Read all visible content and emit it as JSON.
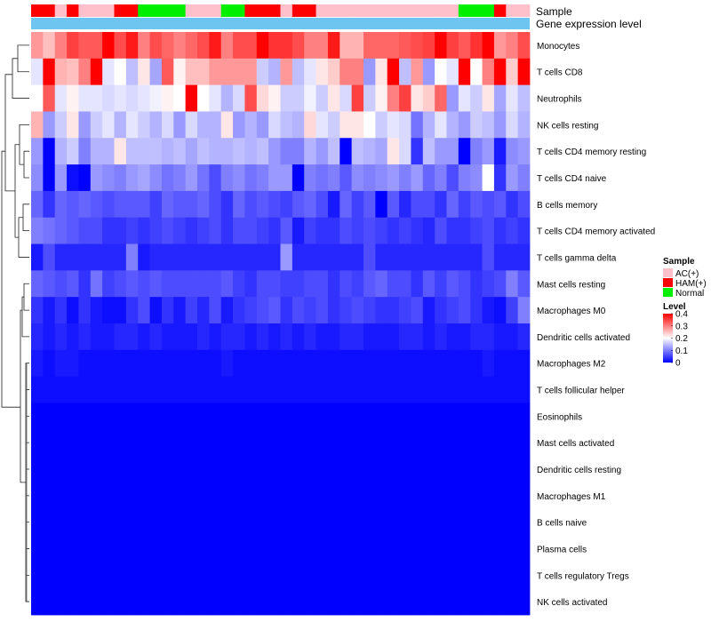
{
  "chart_data": {
    "type": "heatmap",
    "title": "",
    "annotation_labels": {
      "sample": "Sample",
      "gene_level": "Gene expression level"
    },
    "legend": {
      "sample_title": "Sample",
      "sample_entries": [
        {
          "label": "AC(+)",
          "color": "#ffc0cb"
        },
        {
          "label": "HAM(+)",
          "color": "#ff0000"
        },
        {
          "label": "Normal",
          "color": "#00ee00"
        }
      ],
      "level_title": "Level",
      "level_ticks": [
        "0.4",
        "0.3",
        "0.2",
        "0.1",
        "0"
      ],
      "level_tick_values": [
        0.4,
        0.3,
        0.2,
        0.1,
        0
      ],
      "color_scale": {
        "min": 0,
        "max": 0.4,
        "low": "#0000ff",
        "mid": "#ffffff",
        "high": "#ff0000",
        "midpoint": 0.2
      }
    },
    "gene_level_color": "#6ec6f0",
    "sample_groups": [
      "HAM(+)",
      "HAM(+)",
      "AC(+)",
      "HAM(+)",
      "AC(+)",
      "AC(+)",
      "AC(+)",
      "HAM(+)",
      "HAM(+)",
      "Normal",
      "Normal",
      "Normal",
      "Normal",
      "AC(+)",
      "AC(+)",
      "AC(+)",
      "Normal",
      "Normal",
      "HAM(+)",
      "HAM(+)",
      "HAM(+)",
      "AC(+)",
      "HAM(+)",
      "HAM(+)",
      "AC(+)",
      "AC(+)",
      "AC(+)",
      "AC(+)",
      "AC(+)",
      "AC(+)",
      "AC(+)",
      "AC(+)",
      "AC(+)",
      "AC(+)",
      "AC(+)",
      "AC(+)",
      "Normal",
      "Normal",
      "Normal",
      "HAM(+)",
      "AC(+)",
      "AC(+)"
    ],
    "rows": [
      "Monocytes",
      "T cells CD8",
      "Neutrophils",
      "NK cells resting",
      "T cells CD4 memory resting",
      "T cells CD4 naive",
      "B cells memory",
      "T cells CD4 memory activated",
      "T cells gamma delta",
      "Mast cells resting",
      "Macrophages M0",
      "Dendritic cells activated",
      "Macrophages M2",
      "T cells follicular helper",
      "Eosinophils",
      "Mast cells activated",
      "Dendritic cells resting",
      "Macrophages M1",
      "B cells naive",
      "Plasma cells",
      "T cells regulatory  Tregs",
      "NK cells activated"
    ],
    "values": [
      [
        0.28,
        0.25,
        0.3,
        0.35,
        0.33,
        0.33,
        0.4,
        0.34,
        0.38,
        0.3,
        0.34,
        0.32,
        0.3,
        0.32,
        0.34,
        0.38,
        0.3,
        0.34,
        0.34,
        0.4,
        0.36,
        0.36,
        0.34,
        0.3,
        0.3,
        0.38,
        0.26,
        0.26,
        0.32,
        0.32,
        0.32,
        0.33,
        0.34,
        0.35,
        0.4,
        0.35,
        0.33,
        0.36,
        0.4,
        0.28,
        0.3,
        0.34
      ],
      [
        0.18,
        0.4,
        0.26,
        0.25,
        0.3,
        0.4,
        0.18,
        0.2,
        0.15,
        0.22,
        0.13,
        0.33,
        0.21,
        0.25,
        0.25,
        0.28,
        0.28,
        0.28,
        0.28,
        0.16,
        0.14,
        0.28,
        0.15,
        0.18,
        0.22,
        0.24,
        0.3,
        0.3,
        0.12,
        0.22,
        0.4,
        0.15,
        0.28,
        0.12,
        0.2,
        0.18,
        0.4,
        0.2,
        0.3,
        0.4,
        0.24,
        0.4
      ],
      [
        0.2,
        0.33,
        0.18,
        0.21,
        0.18,
        0.18,
        0.17,
        0.18,
        0.17,
        0.18,
        0.19,
        0.21,
        0.2,
        0.4,
        0.2,
        0.18,
        0.14,
        0.17,
        0.34,
        0.23,
        0.21,
        0.16,
        0.16,
        0.19,
        0.16,
        0.22,
        0.17,
        0.35,
        0.16,
        0.21,
        0.3,
        0.35,
        0.22,
        0.24,
        0.32,
        0.12,
        0.18,
        0.16,
        0.22,
        0.13,
        0.18,
        0.15
      ],
      [
        0.26,
        0.12,
        0.16,
        0.22,
        0.12,
        0.16,
        0.18,
        0.14,
        0.18,
        0.16,
        0.14,
        0.17,
        0.12,
        0.17,
        0.14,
        0.14,
        0.22,
        0.12,
        0.14,
        0.12,
        0.17,
        0.15,
        0.14,
        0.23,
        0.18,
        0.16,
        0.22,
        0.22,
        0.2,
        0.16,
        0.18,
        0.17,
        0.09,
        0.14,
        0.18,
        0.14,
        0.12,
        0.16,
        0.15,
        0.12,
        0.17,
        0.14
      ],
      [
        0.12,
        0.0,
        0.14,
        0.16,
        0.1,
        0.14,
        0.14,
        0.22,
        0.15,
        0.15,
        0.15,
        0.14,
        0.15,
        0.13,
        0.15,
        0.14,
        0.14,
        0.15,
        0.14,
        0.15,
        0.12,
        0.1,
        0.1,
        0.14,
        0.12,
        0.15,
        0.0,
        0.15,
        0.14,
        0.13,
        0.22,
        0.17,
        0.04,
        0.15,
        0.12,
        0.12,
        0.0,
        0.1,
        0.12,
        0.02,
        0.11,
        0.12
      ],
      [
        0.11,
        0.0,
        0.12,
        0.01,
        0.0,
        0.12,
        0.11,
        0.1,
        0.12,
        0.13,
        0.11,
        0.09,
        0.1,
        0.12,
        0.09,
        0.06,
        0.1,
        0.11,
        0.09,
        0.1,
        0.12,
        0.12,
        0.0,
        0.1,
        0.09,
        0.1,
        0.07,
        0.11,
        0.1,
        0.11,
        0.12,
        0.1,
        0.12,
        0.08,
        0.1,
        0.06,
        0.1,
        0.11,
        0.2,
        0.04,
        0.12,
        0.1
      ],
      [
        0.08,
        0.04,
        0.08,
        0.07,
        0.08,
        0.07,
        0.06,
        0.07,
        0.07,
        0.07,
        0.05,
        0.08,
        0.07,
        0.07,
        0.08,
        0.06,
        0.04,
        0.08,
        0.06,
        0.07,
        0.06,
        0.05,
        0.07,
        0.08,
        0.06,
        0.02,
        0.08,
        0.05,
        0.07,
        0.0,
        0.07,
        0.03,
        0.06,
        0.06,
        0.04,
        0.08,
        0.05,
        0.07,
        0.06,
        0.07,
        0.04,
        0.06
      ],
      [
        0.1,
        0.09,
        0.08,
        0.07,
        0.06,
        0.06,
        0.04,
        0.04,
        0.05,
        0.04,
        0.05,
        0.06,
        0.05,
        0.04,
        0.05,
        0.06,
        0.04,
        0.06,
        0.06,
        0.05,
        0.04,
        0.07,
        0.02,
        0.05,
        0.04,
        0.04,
        0.06,
        0.05,
        0.06,
        0.05,
        0.04,
        0.05,
        0.04,
        0.03,
        0.06,
        0.04,
        0.04,
        0.05,
        0.06,
        0.04,
        0.05,
        0.04
      ],
      [
        0.02,
        0.06,
        0.03,
        0.03,
        0.03,
        0.03,
        0.03,
        0.03,
        0.1,
        0.02,
        0.03,
        0.03,
        0.03,
        0.03,
        0.03,
        0.03,
        0.03,
        0.03,
        0.03,
        0.03,
        0.03,
        0.12,
        0.03,
        0.03,
        0.03,
        0.03,
        0.03,
        0.03,
        0.06,
        0.03,
        0.03,
        0.03,
        0.03,
        0.03,
        0.03,
        0.03,
        0.03,
        0.03,
        0.06,
        0.03,
        0.03,
        0.03
      ],
      [
        0.08,
        0.07,
        0.06,
        0.07,
        0.04,
        0.09,
        0.05,
        0.06,
        0.07,
        0.06,
        0.07,
        0.06,
        0.06,
        0.06,
        0.06,
        0.06,
        0.07,
        0.05,
        0.04,
        0.06,
        0.06,
        0.05,
        0.05,
        0.06,
        0.06,
        0.04,
        0.06,
        0.05,
        0.07,
        0.08,
        0.06,
        0.06,
        0.04,
        0.07,
        0.05,
        0.07,
        0.06,
        0.04,
        0.05,
        0.06,
        0.1,
        0.07
      ],
      [
        0.04,
        0.02,
        0.04,
        0.01,
        0.04,
        0.02,
        0.01,
        0.01,
        0.04,
        0.06,
        0.01,
        0.04,
        0.02,
        0.05,
        0.03,
        0.06,
        0.02,
        0.04,
        0.05,
        0.06,
        0.07,
        0.04,
        0.06,
        0.05,
        0.06,
        0.04,
        0.05,
        0.06,
        0.05,
        0.04,
        0.04,
        0.05,
        0.06,
        0.02,
        0.04,
        0.05,
        0.06,
        0.04,
        0.02,
        0.01,
        0.05,
        0.1
      ],
      [
        0.03,
        0.02,
        0.03,
        0.02,
        0.03,
        0.02,
        0.02,
        0.03,
        0.03,
        0.02,
        0.03,
        0.02,
        0.02,
        0.02,
        0.03,
        0.02,
        0.03,
        0.03,
        0.02,
        0.03,
        0.02,
        0.03,
        0.02,
        0.03,
        0.02,
        0.02,
        0.03,
        0.03,
        0.02,
        0.02,
        0.02,
        0.03,
        0.03,
        0.02,
        0.03,
        0.02,
        0.02,
        0.03,
        0.03,
        0.02,
        0.02,
        0.03
      ],
      [
        0.02,
        0.01,
        0.02,
        0.02,
        0.01,
        0.01,
        0.01,
        0.01,
        0.01,
        0.01,
        0.01,
        0.01,
        0.01,
        0.01,
        0.01,
        0.01,
        0.02,
        0.01,
        0.01,
        0.01,
        0.01,
        0.01,
        0.01,
        0.01,
        0.01,
        0.01,
        0.01,
        0.01,
        0.01,
        0.01,
        0.01,
        0.01,
        0.01,
        0.01,
        0.01,
        0.01,
        0.01,
        0.01,
        0.02,
        0.01,
        0.01,
        0.01
      ],
      [
        0.01,
        0.01,
        0.01,
        0.01,
        0.01,
        0.01,
        0.01,
        0.01,
        0.01,
        0.01,
        0.01,
        0.01,
        0.01,
        0.01,
        0.01,
        0.01,
        0.01,
        0.01,
        0.01,
        0.01,
        0.01,
        0.01,
        0.01,
        0.01,
        0.01,
        0.01,
        0.01,
        0.01,
        0.01,
        0.01,
        0.01,
        0.01,
        0.01,
        0.01,
        0.01,
        0.01,
        0.01,
        0.01,
        0.01,
        0.01,
        0.01,
        0.01
      ],
      [
        0.0,
        0.0,
        0.0,
        0.0,
        0.0,
        0.0,
        0.0,
        0.0,
        0.0,
        0.0,
        0.0,
        0.0,
        0.0,
        0.0,
        0.0,
        0.0,
        0.0,
        0.0,
        0.0,
        0.0,
        0.0,
        0.0,
        0.0,
        0.0,
        0.0,
        0.0,
        0.0,
        0.0,
        0.0,
        0.0,
        0.0,
        0.0,
        0.0,
        0.0,
        0.0,
        0.0,
        0.0,
        0.0,
        0.0,
        0.0,
        0.0,
        0.0
      ],
      [
        0.0,
        0.0,
        0.0,
        0.0,
        0.0,
        0.0,
        0.0,
        0.0,
        0.0,
        0.0,
        0.0,
        0.0,
        0.0,
        0.0,
        0.0,
        0.0,
        0.0,
        0.0,
        0.0,
        0.0,
        0.0,
        0.0,
        0.0,
        0.0,
        0.0,
        0.0,
        0.0,
        0.0,
        0.0,
        0.0,
        0.0,
        0.0,
        0.0,
        0.0,
        0.0,
        0.0,
        0.0,
        0.0,
        0.0,
        0.0,
        0.0,
        0.0
      ],
      [
        0.0,
        0.0,
        0.0,
        0.0,
        0.0,
        0.0,
        0.0,
        0.0,
        0.0,
        0.0,
        0.0,
        0.0,
        0.0,
        0.0,
        0.0,
        0.0,
        0.0,
        0.0,
        0.0,
        0.0,
        0.0,
        0.0,
        0.0,
        0.0,
        0.0,
        0.0,
        0.0,
        0.0,
        0.0,
        0.0,
        0.0,
        0.0,
        0.0,
        0.0,
        0.0,
        0.0,
        0.0,
        0.0,
        0.0,
        0.0,
        0.0,
        0.0
      ],
      [
        0.0,
        0.0,
        0.0,
        0.0,
        0.0,
        0.0,
        0.0,
        0.0,
        0.0,
        0.0,
        0.0,
        0.0,
        0.0,
        0.0,
        0.0,
        0.0,
        0.0,
        0.0,
        0.0,
        0.0,
        0.0,
        0.0,
        0.0,
        0.0,
        0.0,
        0.0,
        0.0,
        0.0,
        0.0,
        0.0,
        0.0,
        0.0,
        0.0,
        0.0,
        0.0,
        0.0,
        0.0,
        0.0,
        0.0,
        0.0,
        0.0,
        0.0
      ],
      [
        0.0,
        0.0,
        0.0,
        0.0,
        0.0,
        0.0,
        0.0,
        0.0,
        0.0,
        0.0,
        0.0,
        0.0,
        0.0,
        0.0,
        0.0,
        0.0,
        0.0,
        0.0,
        0.0,
        0.0,
        0.0,
        0.0,
        0.0,
        0.0,
        0.0,
        0.0,
        0.0,
        0.0,
        0.0,
        0.0,
        0.0,
        0.0,
        0.0,
        0.0,
        0.0,
        0.0,
        0.0,
        0.0,
        0.0,
        0.0,
        0.0,
        0.0
      ],
      [
        0.0,
        0.0,
        0.0,
        0.0,
        0.0,
        0.0,
        0.0,
        0.0,
        0.0,
        0.0,
        0.0,
        0.0,
        0.0,
        0.0,
        0.0,
        0.0,
        0.0,
        0.0,
        0.0,
        0.0,
        0.0,
        0.0,
        0.0,
        0.0,
        0.0,
        0.0,
        0.0,
        0.0,
        0.0,
        0.0,
        0.0,
        0.0,
        0.0,
        0.0,
        0.0,
        0.0,
        0.0,
        0.0,
        0.0,
        0.0,
        0.0,
        0.0
      ],
      [
        0.0,
        0.0,
        0.0,
        0.0,
        0.0,
        0.0,
        0.0,
        0.0,
        0.0,
        0.0,
        0.0,
        0.0,
        0.0,
        0.0,
        0.0,
        0.0,
        0.0,
        0.0,
        0.0,
        0.0,
        0.0,
        0.0,
        0.0,
        0.0,
        0.0,
        0.0,
        0.0,
        0.0,
        0.0,
        0.0,
        0.0,
        0.0,
        0.0,
        0.0,
        0.0,
        0.0,
        0.0,
        0.0,
        0.0,
        0.0,
        0.0,
        0.0
      ],
      [
        0.0,
        0.0,
        0.0,
        0.0,
        0.0,
        0.0,
        0.0,
        0.0,
        0.0,
        0.0,
        0.0,
        0.0,
        0.0,
        0.0,
        0.0,
        0.0,
        0.0,
        0.0,
        0.0,
        0.0,
        0.0,
        0.0,
        0.0,
        0.0,
        0.0,
        0.0,
        0.0,
        0.0,
        0.0,
        0.0,
        0.0,
        0.0,
        0.0,
        0.0,
        0.0,
        0.0,
        0.0,
        0.0,
        0.0,
        0.0,
        0.0,
        0.0
      ]
    ]
  }
}
